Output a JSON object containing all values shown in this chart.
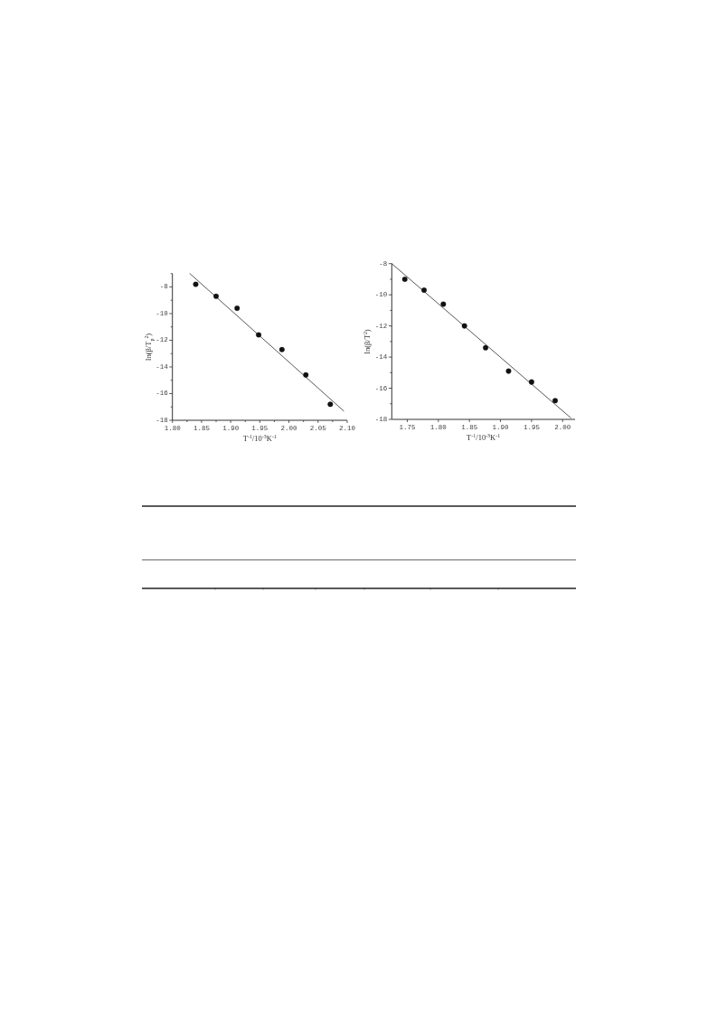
{
  "chart_data": [
    {
      "type": "scatter",
      "xlabel": "T$^{-1}$/10$^{-3}$K$^{-1}$",
      "ylabel": "ln(β/T$_{p}$$^{2}$)",
      "xlim": [
        1.8,
        2.1
      ],
      "ylim": [
        -18,
        -7
      ],
      "xticks": [
        {
          "value": 1.8,
          "label": "1.80"
        },
        {
          "value": 1.825,
          "label": null
        },
        {
          "value": 1.85,
          "label": "1.85"
        },
        {
          "value": 1.875,
          "label": null
        },
        {
          "value": 1.9,
          "label": "1.90"
        },
        {
          "value": 1.925,
          "label": null
        },
        {
          "value": 1.95,
          "label": "1.95"
        },
        {
          "value": 1.975,
          "label": null
        },
        {
          "value": 2.0,
          "label": "2.00"
        },
        {
          "value": 2.025,
          "label": null
        },
        {
          "value": 2.05,
          "label": "2.05"
        },
        {
          "value": 2.075,
          "label": null
        },
        {
          "value": 2.1,
          "label": "2.10"
        }
      ],
      "yticks": [
        {
          "value": -7,
          "label": null
        },
        -8,
        {
          "value": -9,
          "label": null
        },
        -10,
        {
          "value": -11,
          "label": null
        },
        -12,
        {
          "value": -13,
          "label": null
        },
        -14,
        {
          "value": -15,
          "label": null
        },
        -16,
        {
          "value": -17,
          "label": null
        },
        -18
      ],
      "series": [
        {
          "type": "scatter",
          "marker": "circle",
          "color": "#111111",
          "x": [
            1.84,
            1.875,
            1.911,
            1.948,
            1.988,
            2.029,
            2.071
          ],
          "values": [
            -7.8,
            -8.7,
            -9.6,
            -11.6,
            -12.7,
            -14.6,
            -16.8
          ]
        },
        {
          "type": "line",
          "marker": "none",
          "line_style": "solid",
          "color": "#444444",
          "x": [
            1.83,
            2.094
          ],
          "values": [
            -7.0,
            -17.3
          ]
        }
      ]
    },
    {
      "type": "scatter",
      "xlabel": "T$^{-1}$/10$^{-3}$K$^{-1}$",
      "ylabel": "ln(β/T$^{2}$)",
      "xlim": [
        1.725,
        2.02
      ],
      "ylim": [
        -18,
        -8
      ],
      "xticks": [
        {
          "value": 1.75,
          "label": "1.75"
        },
        {
          "value": 1.8,
          "label": "1.80"
        },
        {
          "value": 1.85,
          "label": "1.85"
        },
        {
          "value": 1.9,
          "label": "1.90"
        },
        {
          "value": 1.95,
          "label": "1.95"
        },
        {
          "value": 2.0,
          "label": "2.00"
        }
      ],
      "yticks": [
        -8,
        {
          "value": -9,
          "label": null
        },
        -10,
        {
          "value": -11,
          "label": null
        },
        -12,
        {
          "value": -13,
          "label": null
        },
        -14,
        {
          "value": -15,
          "label": null
        },
        -16,
        {
          "value": -17,
          "label": null
        },
        -18
      ],
      "series": [
        {
          "type": "scatter",
          "marker": "circle",
          "color": "#111111",
          "x": [
            1.746,
            1.777,
            1.808,
            1.842,
            1.876,
            1.913,
            1.95,
            1.988
          ],
          "values": [
            -9.0,
            -9.7,
            -10.6,
            -12.0,
            -13.4,
            -14.9,
            -15.6,
            -16.8
          ]
        },
        {
          "type": "line",
          "marker": "none",
          "line_style": "solid",
          "color": "#444444",
          "x": [
            1.725,
            2.013
          ],
          "values": [
            -8.0,
            -17.9
          ]
        }
      ]
    }
  ]
}
